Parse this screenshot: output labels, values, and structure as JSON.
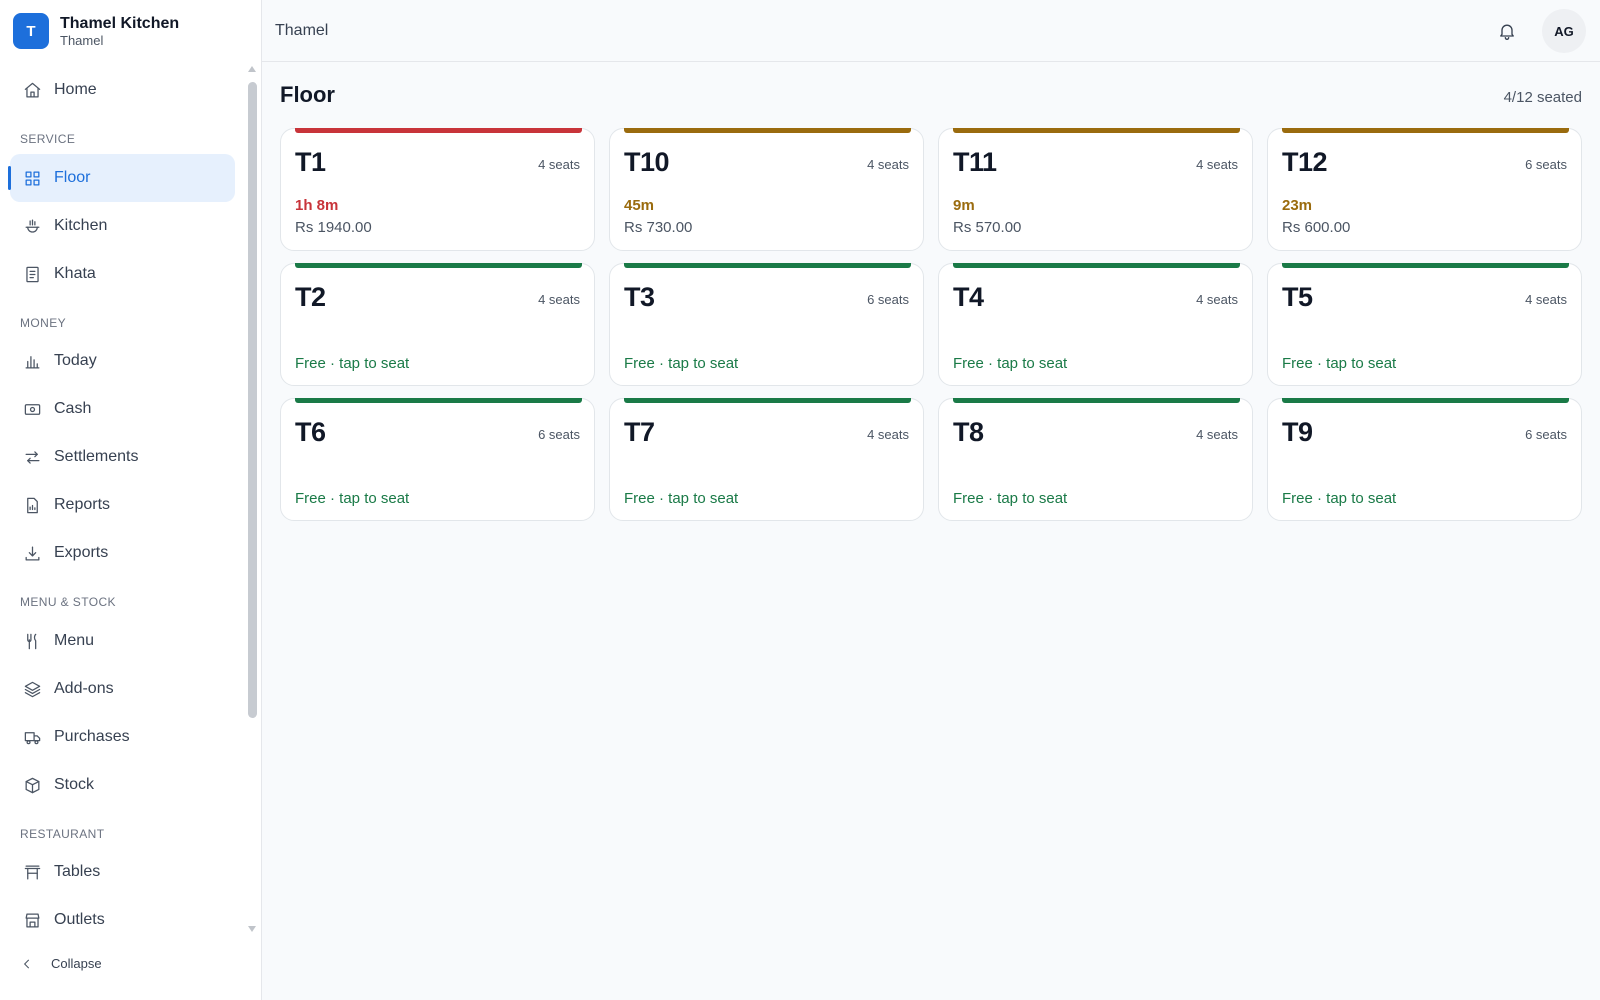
{
  "brand": {
    "logo_letter": "T",
    "name": "Thamel Kitchen",
    "outlet": "Thamel"
  },
  "nav": {
    "top": [
      {
        "label": "Home",
        "icon": "home-icon"
      }
    ],
    "sections": [
      {
        "label": "SERVICE",
        "items": [
          {
            "label": "Floor",
            "icon": "grid-icon",
            "active": true
          },
          {
            "label": "Kitchen",
            "icon": "pot-icon"
          },
          {
            "label": "Khata",
            "icon": "ledger-icon"
          }
        ]
      },
      {
        "label": "MONEY",
        "items": [
          {
            "label": "Today",
            "icon": "bar-chart-icon"
          },
          {
            "label": "Cash",
            "icon": "banknote-icon"
          },
          {
            "label": "Settlements",
            "icon": "arrows-icon"
          },
          {
            "label": "Reports",
            "icon": "report-icon"
          },
          {
            "label": "Exports",
            "icon": "download-icon"
          }
        ]
      },
      {
        "label": "MENU & STOCK",
        "items": [
          {
            "label": "Menu",
            "icon": "utensils-icon"
          },
          {
            "label": "Add-ons",
            "icon": "layers-icon"
          },
          {
            "label": "Purchases",
            "icon": "truck-icon"
          },
          {
            "label": "Stock",
            "icon": "box-icon"
          }
        ]
      },
      {
        "label": "RESTAURANT",
        "items": [
          {
            "label": "Tables",
            "icon": "table-icon"
          },
          {
            "label": "Outlets",
            "icon": "store-icon"
          }
        ]
      }
    ],
    "collapse_label": "Collapse"
  },
  "topbar": {
    "title": "Thamel",
    "avatar_initials": "AG"
  },
  "main": {
    "title": "Floor",
    "seated_summary": "4/12 seated",
    "tables": [
      {
        "name": "T1",
        "seats": "4 seats",
        "status": "occupied",
        "elapsed": "1h 8m",
        "amount": "Rs 1940.00",
        "color": "#c8343a"
      },
      {
        "name": "T10",
        "seats": "4 seats",
        "status": "occupied",
        "elapsed": "45m",
        "amount": "Rs 730.00",
        "color": "#9a6b0e"
      },
      {
        "name": "T11",
        "seats": "4 seats",
        "status": "occupied",
        "elapsed": "9m",
        "amount": "Rs 570.00",
        "color": "#9a6b0e"
      },
      {
        "name": "T12",
        "seats": "6 seats",
        "status": "occupied",
        "elapsed": "23m",
        "amount": "Rs 600.00",
        "color": "#9a6b0e"
      },
      {
        "name": "T2",
        "seats": "4 seats",
        "status": "free",
        "free_label": "Free · tap to seat",
        "color": "#1a7a47"
      },
      {
        "name": "T3",
        "seats": "6 seats",
        "status": "free",
        "free_label": "Free · tap to seat",
        "color": "#1a7a47"
      },
      {
        "name": "T4",
        "seats": "4 seats",
        "status": "free",
        "free_label": "Free · tap to seat",
        "color": "#1a7a47"
      },
      {
        "name": "T5",
        "seats": "4 seats",
        "status": "free",
        "free_label": "Free · tap to seat",
        "color": "#1a7a47"
      },
      {
        "name": "T6",
        "seats": "6 seats",
        "status": "free",
        "free_label": "Free · tap to seat",
        "color": "#1a7a47"
      },
      {
        "name": "T7",
        "seats": "4 seats",
        "status": "free",
        "free_label": "Free · tap to seat",
        "color": "#1a7a47"
      },
      {
        "name": "T8",
        "seats": "4 seats",
        "status": "free",
        "free_label": "Free · tap to seat",
        "color": "#1a7a47"
      },
      {
        "name": "T9",
        "seats": "6 seats",
        "status": "free",
        "free_label": "Free · tap to seat",
        "color": "#1a7a47"
      }
    ]
  }
}
